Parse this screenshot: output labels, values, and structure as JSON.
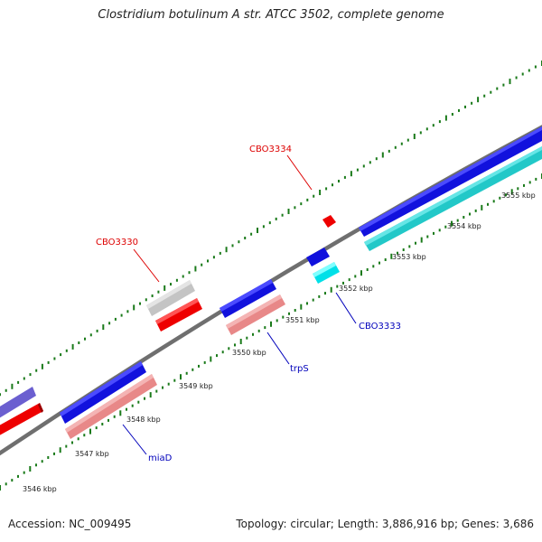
{
  "title": "Clostridium botulinum A str. ATCC 3502, complete genome",
  "accession_label": "Accession: NC_009495",
  "summary_label": "Topology: circular; Length: 3,886,916 bp; Genes: 3,686",
  "colors": {
    "backbone": "#777777",
    "tick": "#1a7a1a",
    "label_forward": "#dd0000",
    "label_reverse": "#0000bb"
  },
  "kbp_markers": [
    "3546 kbp",
    "3547 kbp",
    "3548 kbp",
    "3549 kbp",
    "3550 kbp",
    "3551 kbp",
    "3552 kbp",
    "3553 kbp",
    "3554 kbp",
    "3555 kbp"
  ],
  "gene_labels": [
    {
      "id": "CBO3334",
      "label": "CBO3334",
      "strand": "forward"
    },
    {
      "id": "CBO3330",
      "label": "CBO3330",
      "strand": "forward"
    },
    {
      "id": "CBO3333",
      "label": "CBO3333",
      "strand": "reverse"
    },
    {
      "id": "trpS",
      "label": "trpS",
      "strand": "reverse"
    },
    {
      "id": "miaD",
      "label": "miaD",
      "strand": "reverse"
    }
  ],
  "features": [
    {
      "id": "fwd-left-purple",
      "color": "#6b5fd0"
    },
    {
      "id": "fwd-left-red",
      "color": "#ee0000"
    },
    {
      "id": "blue-miaD",
      "color": "#1111dd"
    },
    {
      "id": "pink-miaD",
      "color": "#e88888"
    },
    {
      "id": "grey-CBO3330",
      "color": "#c4c4c4"
    },
    {
      "id": "red-CBO3330",
      "color": "#ee0000"
    },
    {
      "id": "blue-trpS",
      "color": "#1111dd"
    },
    {
      "id": "pink-trpS",
      "color": "#e88888"
    },
    {
      "id": "blue-small",
      "color": "#1111dd"
    },
    {
      "id": "cyan-CBO3333",
      "color": "#00e0e8"
    },
    {
      "id": "red-CBO3334",
      "color": "#ee0000"
    },
    {
      "id": "blue-long",
      "color": "#1111dd"
    },
    {
      "id": "teal-long",
      "color": "#22c8c8"
    }
  ]
}
